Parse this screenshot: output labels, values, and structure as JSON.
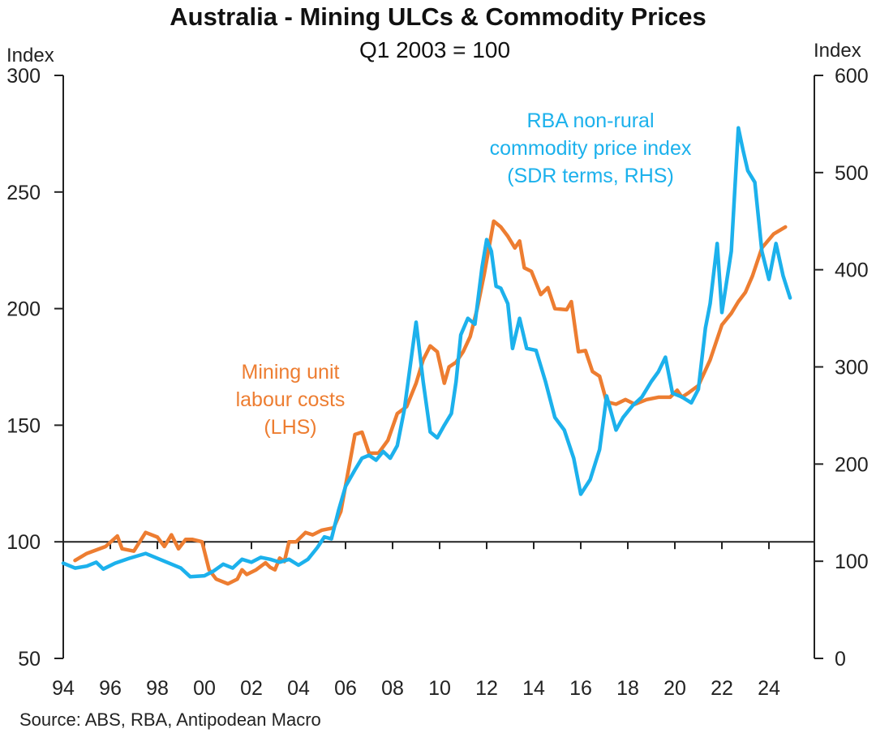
{
  "chart_data": {
    "type": "line",
    "title": "Australia - Mining ULCs & Commodity Prices",
    "subtitle": "Q1 2003 = 100",
    "source": "Source: ABS, RBA, Antipodean Macro",
    "left_axis": {
      "unit_label": "Index",
      "ylim": [
        50,
        300
      ],
      "ticks": [
        50,
        100,
        150,
        200,
        250,
        300
      ],
      "tick_labels": [
        "50",
        "100",
        "150",
        "200",
        "250",
        "300"
      ]
    },
    "right_axis": {
      "unit_label": "Index",
      "ylim": [
        0,
        600
      ],
      "ticks": [
        0,
        100,
        200,
        300,
        400,
        500,
        600
      ],
      "tick_labels": [
        "0",
        "100",
        "200",
        "300",
        "400",
        "500",
        "600"
      ]
    },
    "x_axis": {
      "xlim": [
        1994,
        2025.3
      ],
      "ticks": [
        1994,
        1996,
        1998,
        2000,
        2002,
        2004,
        2006,
        2008,
        2010,
        2012,
        2014,
        2016,
        2018,
        2020,
        2022,
        2024
      ],
      "tick_labels": [
        "94",
        "96",
        "98",
        "00",
        "02",
        "04",
        "06",
        "08",
        "10",
        "12",
        "14",
        "16",
        "18",
        "20",
        "22",
        "24"
      ],
      "crosses_left_at": 100
    },
    "grid": false,
    "legend": "inline-annotations",
    "series": [
      {
        "name": "Mining unit labour costs (LHS)",
        "annotation": [
          "Mining unit",
          "labour costs",
          "(LHS)"
        ],
        "axis": "left",
        "color": "#ED7D31",
        "x": [
          1994.5,
          1995.0,
          1995.8,
          1996.3,
          1996.5,
          1997.0,
          1997.5,
          1998.0,
          1998.3,
          1998.6,
          1998.9,
          1999.2,
          1999.5,
          1999.9,
          2000.2,
          2000.5,
          2001.0,
          2001.4,
          2001.6,
          2001.8,
          2002.2,
          2002.6,
          2002.8,
          2003.0,
          2003.2,
          2003.4,
          2003.6,
          2003.9,
          2004.3,
          2004.6,
          2005.0,
          2005.5,
          2005.8,
          2006.2,
          2006.4,
          2006.7,
          2007.0,
          2007.4,
          2007.8,
          2008.2,
          2008.6,
          2009.0,
          2009.3,
          2009.6,
          2009.9,
          2010.2,
          2010.4,
          2010.7,
          2011.0,
          2011.3,
          2011.6,
          2011.9,
          2012.3,
          2012.6,
          2012.9,
          2013.2,
          2013.4,
          2013.6,
          2013.9,
          2014.3,
          2014.6,
          2014.9,
          2015.4,
          2015.6,
          2015.9,
          2016.2,
          2016.5,
          2016.8,
          2017.1,
          2017.5,
          2017.9,
          2018.3,
          2018.8,
          2019.3,
          2019.8,
          2020.1,
          2020.3,
          2020.6,
          2021.0,
          2021.5,
          2022.0,
          2022.4,
          2022.7,
          2023.0,
          2023.3,
          2023.7,
          2024.2,
          2024.7
        ],
        "values": [
          92,
          95,
          98,
          102.5,
          97,
          96,
          104,
          102,
          98,
          103,
          97,
          101,
          101,
          100,
          88,
          84,
          82,
          84,
          88,
          86,
          88,
          91,
          89,
          88,
          93,
          91.5,
          100,
          100,
          104,
          103,
          105,
          106,
          113,
          135,
          146,
          147,
          138,
          138,
          143.5,
          155,
          158,
          168,
          178,
          184,
          181.5,
          168,
          175,
          177,
          181.5,
          188,
          200,
          215,
          237.5,
          235,
          231,
          226,
          229,
          217.5,
          216,
          206,
          209,
          200,
          199.5,
          203,
          181.5,
          182,
          173,
          171,
          160,
          159,
          161,
          159,
          161,
          162,
          162,
          165,
          162,
          164,
          167,
          178,
          193,
          198,
          203,
          207,
          214,
          226,
          232,
          235
        ]
      },
      {
        "name": "RBA non-rural commodity price index (SDR terms, RHS)",
        "annotation": [
          "RBA non-rural",
          "commodity price index",
          "(SDR terms, RHS)"
        ],
        "axis": "right",
        "color": "#1CB1EC",
        "x": [
          1994.0,
          1994.5,
          1995.0,
          1995.4,
          1995.7,
          1996.2,
          1996.8,
          1997.5,
          1998.0,
          1998.5,
          1999.0,
          1999.4,
          2000.0,
          2000.4,
          2000.8,
          2001.2,
          2001.6,
          2002.0,
          2002.4,
          2002.8,
          2003.2,
          2003.6,
          2004.0,
          2004.4,
          2004.8,
          2005.1,
          2005.4,
          2005.7,
          2006.0,
          2006.4,
          2006.7,
          2007.0,
          2007.3,
          2007.6,
          2007.9,
          2008.2,
          2008.5,
          2008.8,
          2009.0,
          2009.3,
          2009.6,
          2009.9,
          2010.2,
          2010.5,
          2010.7,
          2010.9,
          2011.2,
          2011.5,
          2011.8,
          2012.0,
          2012.2,
          2012.4,
          2012.6,
          2012.9,
          2013.1,
          2013.4,
          2013.7,
          2014.1,
          2014.5,
          2014.9,
          2015.3,
          2015.7,
          2016.0,
          2016.4,
          2016.8,
          2017.1,
          2017.5,
          2017.8,
          2018.2,
          2018.6,
          2019.0,
          2019.3,
          2019.6,
          2019.9,
          2020.3,
          2020.7,
          2021.0,
          2021.3,
          2021.5,
          2021.8,
          2022.0,
          2022.4,
          2022.7,
          2022.9,
          2023.1,
          2023.4,
          2023.7,
          2024.0,
          2024.3,
          2024.6,
          2024.9
        ],
        "values": [
          98,
          93,
          95,
          99,
          92,
          98,
          103,
          108,
          103,
          98,
          93,
          84,
          85,
          90,
          97,
          93,
          102,
          99,
          104,
          102,
          99,
          102,
          96,
          102,
          114,
          125,
          123,
          152,
          177,
          194,
          206,
          209,
          204,
          213,
          206,
          219,
          256,
          310,
          346,
          285,
          233,
          227,
          240,
          252,
          285,
          333,
          350,
          344,
          402,
          431,
          419,
          383,
          381,
          365,
          319,
          350,
          319,
          317,
          285,
          248,
          235,
          206,
          169,
          184,
          215,
          270,
          235,
          248,
          260,
          269,
          285,
          295,
          310,
          273,
          269,
          263,
          277,
          340,
          365,
          427,
          356,
          419,
          546,
          523,
          502,
          490,
          419,
          390,
          427,
          394,
          371
        ]
      }
    ]
  }
}
